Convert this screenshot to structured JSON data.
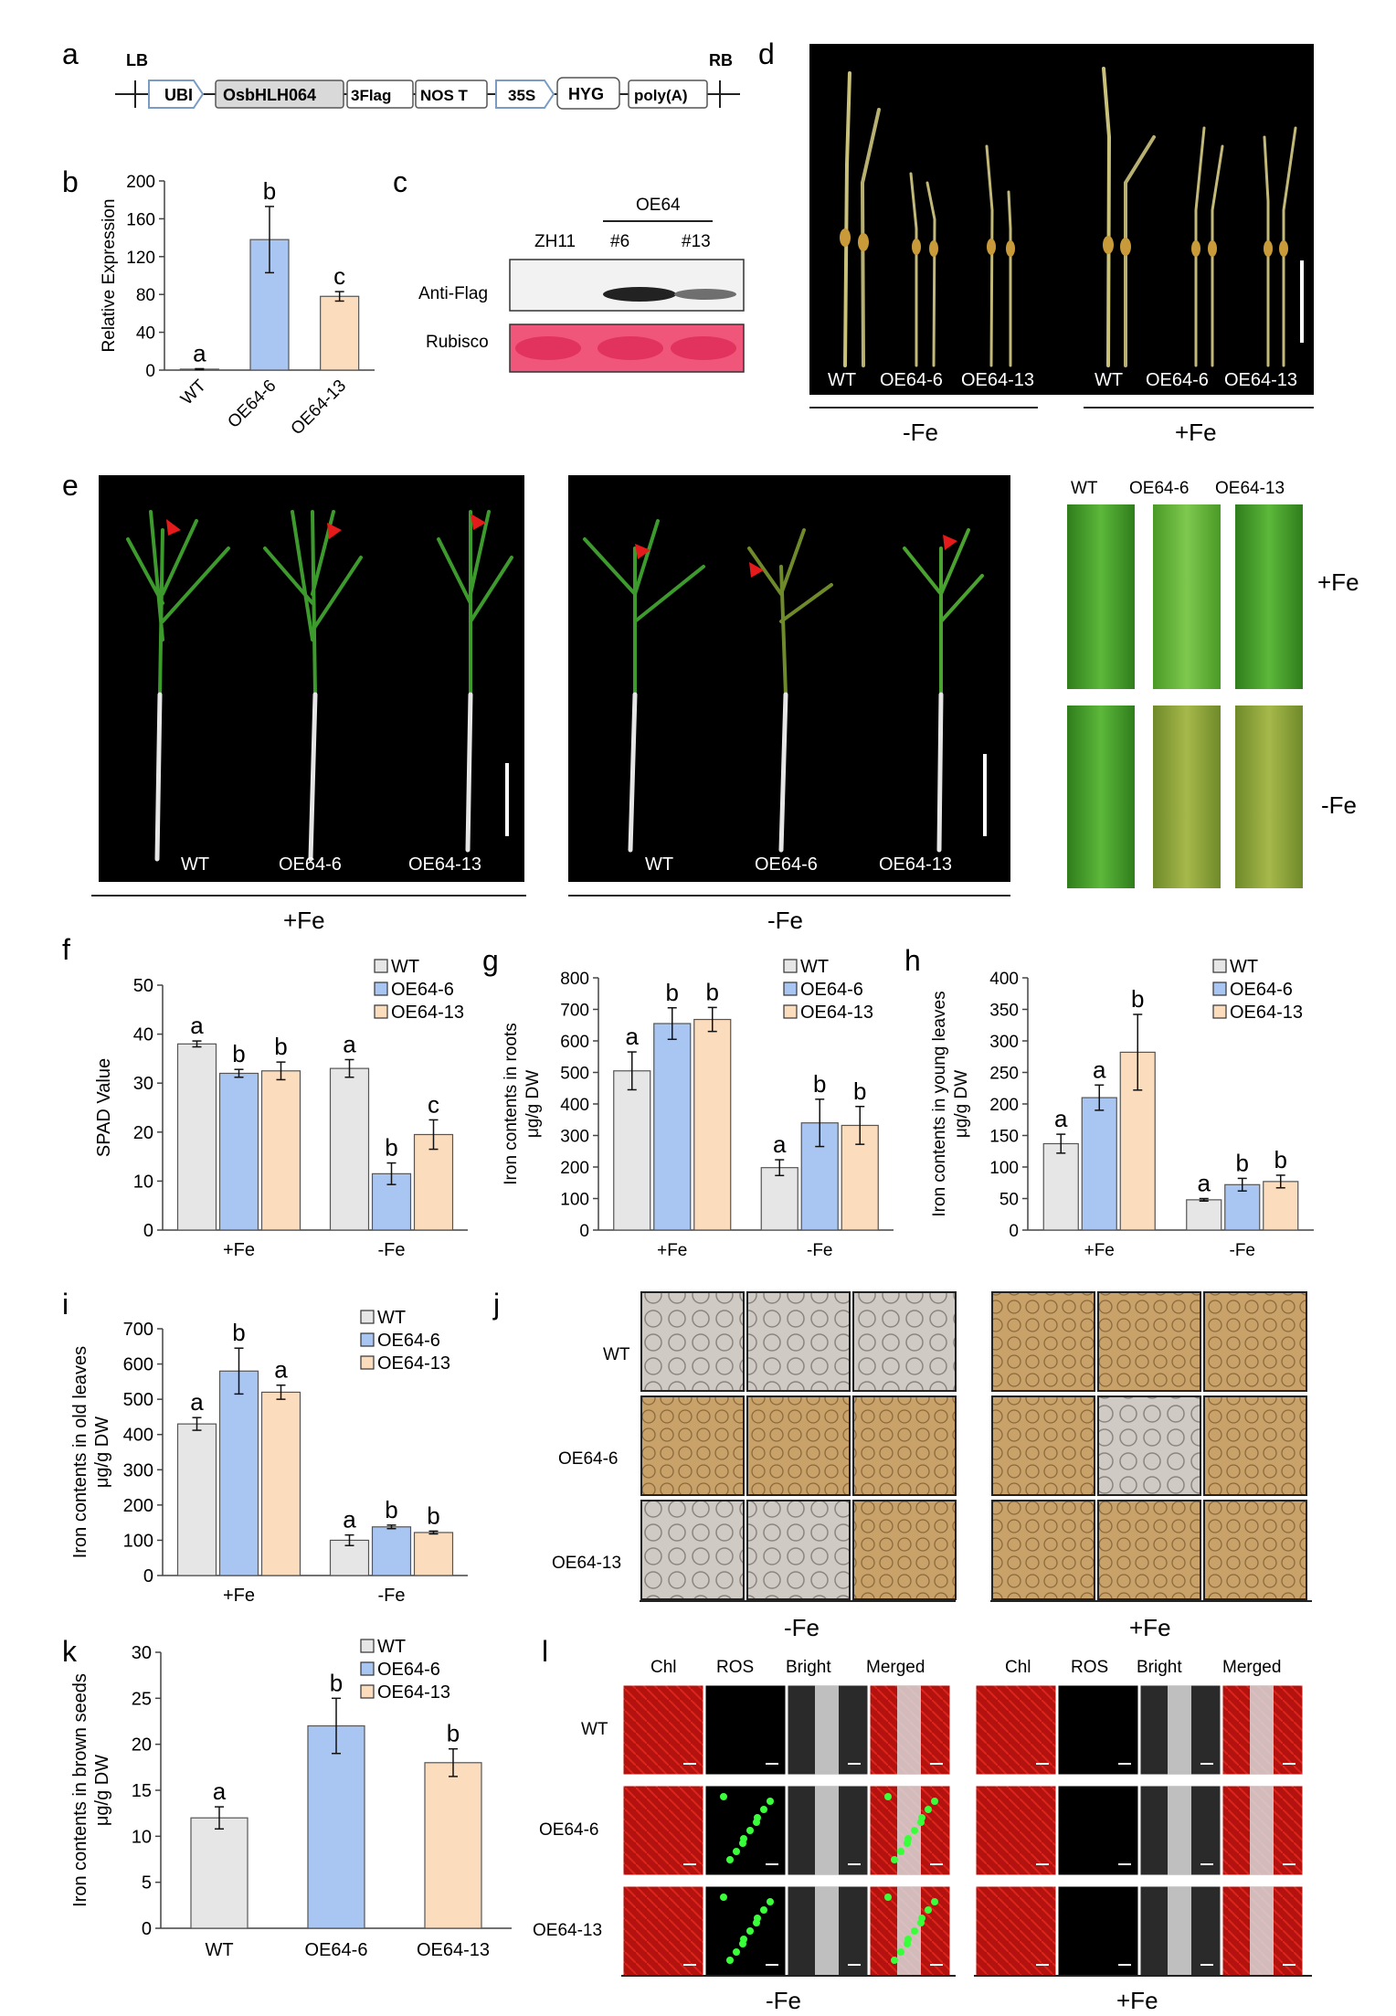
{
  "panels": {
    "a": {
      "letter": "a",
      "lb": "LB",
      "rb": "RB",
      "elements": [
        "UBI",
        "OsbHLH064",
        "3Flag",
        "NOS T",
        "35S",
        "HYG",
        "poly(A)"
      ]
    },
    "b": {
      "letter": "b",
      "chart_data": {
        "type": "bar",
        "ylabel": "Relative Expression",
        "ylim": [
          0,
          200
        ],
        "yticks": [
          0,
          40,
          80,
          120,
          160,
          200
        ],
        "categories": [
          "WT",
          "OE64-6",
          "OE64-13"
        ],
        "values": [
          1,
          138,
          78
        ],
        "errors": [
          0.5,
          35,
          5
        ],
        "letters": [
          "a",
          "b",
          "c"
        ],
        "colors": [
          "#e6e6e6",
          "#a9c6f2",
          "#fbdcbd"
        ]
      }
    },
    "c": {
      "letter": "c",
      "group_label": "OE64",
      "lanes": [
        "ZH11",
        "#6",
        "#13"
      ],
      "rows": [
        "Anti-Flag",
        "Rubisco"
      ]
    },
    "d": {
      "letter": "d",
      "labels": [
        "WT",
        "OE64-6",
        "OE64-13",
        "WT",
        "OE64-6",
        "OE64-13"
      ],
      "groups": [
        "-Fe",
        "+Fe"
      ]
    },
    "e": {
      "letter": "e",
      "labels": [
        "WT",
        "OE64-6",
        "OE64-13"
      ],
      "groups": [
        "+Fe",
        "-Fe"
      ],
      "closeup_cols": [
        "WT",
        "OE64-6",
        "OE64-13"
      ],
      "closeup_rows": [
        "+Fe",
        "-Fe"
      ]
    },
    "f": {
      "letter": "f",
      "chart_data": {
        "type": "bar",
        "ylabel": "SPAD Value",
        "ylim": [
          0,
          50
        ],
        "yticks": [
          0,
          10,
          20,
          30,
          40,
          50
        ],
        "categories": [
          "+Fe",
          "-Fe"
        ],
        "series": [
          {
            "name": "WT",
            "color": "#e6e6e6",
            "values": [
              38,
              33
            ],
            "errors": [
              0.6,
              1.8
            ],
            "letters": [
              "a",
              "a"
            ]
          },
          {
            "name": "OE64-6",
            "color": "#a9c6f2",
            "values": [
              32,
              11.5
            ],
            "errors": [
              0.8,
              2.2
            ],
            "letters": [
              "b",
              "b"
            ]
          },
          {
            "name": "OE64-13",
            "color": "#fbdcbd",
            "values": [
              32.5,
              19.5
            ],
            "errors": [
              1.8,
              3
            ],
            "letters": [
              "b",
              "c"
            ]
          }
        ]
      }
    },
    "g": {
      "letter": "g",
      "chart_data": {
        "type": "bar",
        "ylabel": "Iron contents in roots",
        "ylabel2": "μg/g DW",
        "ylim": [
          0,
          800
        ],
        "yticks": [
          0,
          100,
          200,
          300,
          400,
          500,
          600,
          700,
          800
        ],
        "categories": [
          "+Fe",
          "-Fe"
        ],
        "series": [
          {
            "name": "WT",
            "color": "#e6e6e6",
            "values": [
              505,
              198
            ],
            "errors": [
              60,
              25
            ],
            "letters": [
              "a",
              "a"
            ]
          },
          {
            "name": "OE64-6",
            "color": "#a9c6f2",
            "values": [
              655,
              340
            ],
            "errors": [
              50,
              75
            ],
            "letters": [
              "b",
              "b"
            ]
          },
          {
            "name": "OE64-13",
            "color": "#fbdcbd",
            "values": [
              668,
              332
            ],
            "errors": [
              38,
              60
            ],
            "letters": [
              "b",
              "b"
            ]
          }
        ]
      }
    },
    "h": {
      "letter": "h",
      "chart_data": {
        "type": "bar",
        "ylabel": "Iron contents in young leaves",
        "ylabel2": "μg/g DW",
        "ylim": [
          0,
          400
        ],
        "yticks": [
          0,
          50,
          100,
          150,
          200,
          250,
          300,
          350,
          400
        ],
        "categories": [
          "+Fe",
          "-Fe"
        ],
        "series": [
          {
            "name": "WT",
            "color": "#e6e6e6",
            "values": [
              137,
              48
            ],
            "errors": [
              15,
              2
            ],
            "letters": [
              "a",
              "a"
            ]
          },
          {
            "name": "OE64-6",
            "color": "#a9c6f2",
            "values": [
              210,
              72
            ],
            "errors": [
              20,
              10
            ],
            "letters": [
              "a",
              "b"
            ]
          },
          {
            "name": "OE64-13",
            "color": "#fbdcbd",
            "values": [
              282,
              77
            ],
            "errors": [
              60,
              10
            ],
            "letters": [
              "b",
              "b"
            ]
          }
        ]
      }
    },
    "i": {
      "letter": "i",
      "chart_data": {
        "type": "bar",
        "ylabel": "Iron contents in old leaves",
        "ylabel2": "μg/g DW",
        "ylim": [
          0,
          700
        ],
        "yticks": [
          0,
          100,
          200,
          300,
          400,
          500,
          600,
          700
        ],
        "categories": [
          "+Fe",
          "-Fe"
        ],
        "series": [
          {
            "name": "WT",
            "color": "#e6e6e6",
            "values": [
              430,
              100
            ],
            "errors": [
              18,
              15
            ],
            "letters": [
              "a",
              "a"
            ]
          },
          {
            "name": "OE64-6",
            "color": "#a9c6f2",
            "values": [
              580,
              138
            ],
            "errors": [
              65,
              5
            ],
            "letters": [
              "b",
              "b"
            ]
          },
          {
            "name": "OE64-13",
            "color": "#fbdcbd",
            "values": [
              520,
              122
            ],
            "errors": [
              20,
              4
            ],
            "letters": [
              "a",
              "b"
            ]
          }
        ]
      }
    },
    "j": {
      "letter": "j",
      "rows": [
        "WT",
        "OE64-6",
        "OE64-13"
      ],
      "groups": [
        "-Fe",
        "+Fe"
      ]
    },
    "k": {
      "letter": "k",
      "chart_data": {
        "type": "bar",
        "ylabel": "Iron contents in brown seeds",
        "ylabel2": "μg/g DW",
        "ylim": [
          0,
          30
        ],
        "yticks": [
          0,
          5,
          10,
          15,
          20,
          25,
          30
        ],
        "categories": [
          "WT",
          "OE64-6",
          "OE64-13"
        ],
        "values": [
          12,
          22,
          18
        ],
        "errors": [
          1.2,
          3,
          1.5
        ],
        "letters": [
          "a",
          "b",
          "b"
        ],
        "colors": [
          "#e6e6e6",
          "#a9c6f2",
          "#fbdcbd"
        ],
        "legend": [
          "WT",
          "OE64-6",
          "OE64-13"
        ]
      }
    },
    "l": {
      "letter": "l",
      "cols": [
        "Chl",
        "ROS",
        "Bright",
        "Merged"
      ],
      "rows": [
        "WT",
        "OE64-6",
        "OE64-13"
      ],
      "groups": [
        "-Fe",
        "+Fe"
      ]
    }
  }
}
